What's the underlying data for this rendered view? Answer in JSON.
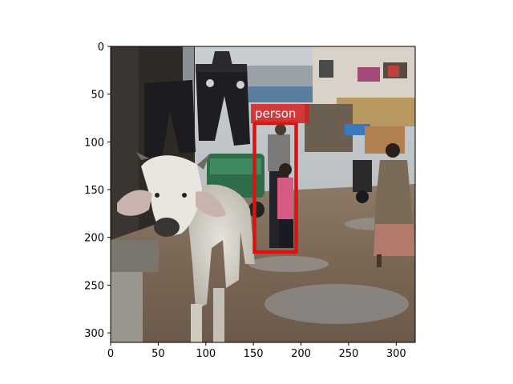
{
  "axes": {
    "x_ticks": [
      "0",
      "50",
      "100",
      "150",
      "200",
      "250",
      "300"
    ],
    "y_ticks": [
      "0",
      "50",
      "100",
      "150",
      "200",
      "250",
      "300"
    ],
    "x_range": [
      0,
      320
    ],
    "y_range": [
      0,
      310
    ]
  },
  "scene": {
    "description_icons": [
      "cow",
      "hanging-pants",
      "street",
      "auto-rickshaw",
      "woman-in-sari",
      "motorcycle",
      "buildings"
    ]
  },
  "detections": [
    {
      "label": "person",
      "box_color": "#e01010",
      "label_bg": "#d42020"
    }
  ]
}
